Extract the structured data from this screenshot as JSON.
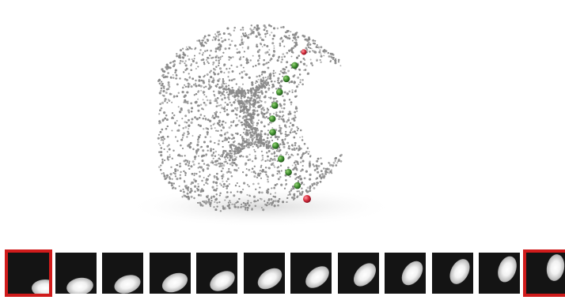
{
  "figure": {
    "description_visible_text": "",
    "colors": {
      "point_cloud": "#8a8a8a",
      "path_point": "#3f8f2f",
      "endpoint": "#d42a3a",
      "frame_background": "#141414",
      "frame_highlight": "#d01b1b"
    },
    "manifold": {
      "type": "torus-like point cloud",
      "path_points_count": 12
    },
    "frames": [
      {
        "id": 1,
        "angle_deg": 0,
        "highlight": true
      },
      {
        "id": 2,
        "angle_deg": -10,
        "highlight": false
      },
      {
        "id": 3,
        "angle_deg": -18,
        "highlight": false
      },
      {
        "id": 4,
        "angle_deg": -25,
        "highlight": false
      },
      {
        "id": 5,
        "angle_deg": -30,
        "highlight": false
      },
      {
        "id": 6,
        "angle_deg": -35,
        "highlight": false
      },
      {
        "id": 7,
        "angle_deg": -40,
        "highlight": false
      },
      {
        "id": 8,
        "angle_deg": -48,
        "highlight": false
      },
      {
        "id": 9,
        "angle_deg": -55,
        "highlight": false
      },
      {
        "id": 10,
        "angle_deg": -62,
        "highlight": false
      },
      {
        "id": 11,
        "angle_deg": -70,
        "highlight": false
      },
      {
        "id": 12,
        "angle_deg": -80,
        "highlight": true
      }
    ]
  }
}
